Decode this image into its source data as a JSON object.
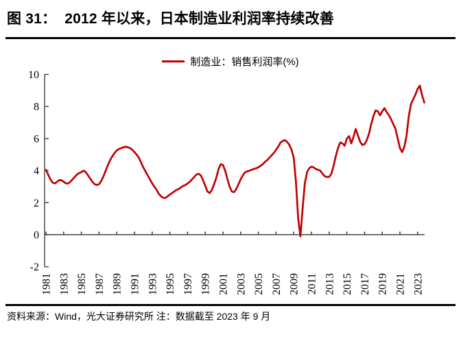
{
  "header": {
    "title": "图 31：  2012 年以来，日本制造业利润率持续改善"
  },
  "legend": {
    "label": "制造业：销售利润率(%)"
  },
  "footer": {
    "text": "资料来源：Wind，光大证券研究所 注：数据截至 2023 年 9 月"
  },
  "colors": {
    "line": "#C00000",
    "axis": "#404040",
    "text": "#000000",
    "background": "#FFFFFF"
  },
  "chart_data": {
    "type": "line",
    "title": "图 31：2012 年以来，日本制造业利润率持续改善",
    "xlabel": "",
    "ylabel": "",
    "grid": false,
    "legend_position": "top-center",
    "ylim": [
      -2,
      10
    ],
    "xlim": [
      1981,
      2024
    ],
    "y_ticks": [
      10,
      8,
      6,
      4,
      2,
      0,
      -2
    ],
    "x_ticks": [
      "1981",
      "1983",
      "1985",
      "1987",
      "1989",
      "1991",
      "1993",
      "1995",
      "1997",
      "1999",
      "2001",
      "2003",
      "2005",
      "2007",
      "2009",
      "2011",
      "2013",
      "2015",
      "2017",
      "2019",
      "2021",
      "2023"
    ],
    "x_start": 1981.0,
    "x_step": 0.25,
    "series": [
      {
        "name": "制造业：销售利润率(%)",
        "color": "#C00000",
        "values": [
          4.05,
          3.75,
          3.45,
          3.25,
          3.2,
          3.3,
          3.4,
          3.4,
          3.3,
          3.2,
          3.2,
          3.3,
          3.45,
          3.6,
          3.75,
          3.85,
          3.9,
          4.0,
          3.9,
          3.7,
          3.5,
          3.3,
          3.15,
          3.1,
          3.15,
          3.35,
          3.65,
          4.0,
          4.35,
          4.65,
          4.9,
          5.1,
          5.25,
          5.35,
          5.4,
          5.45,
          5.5,
          5.45,
          5.4,
          5.3,
          5.15,
          5.0,
          4.8,
          4.5,
          4.2,
          3.95,
          3.7,
          3.45,
          3.2,
          3.0,
          2.8,
          2.55,
          2.4,
          2.3,
          2.3,
          2.4,
          2.5,
          2.6,
          2.7,
          2.8,
          2.85,
          2.95,
          3.05,
          3.1,
          3.2,
          3.3,
          3.45,
          3.6,
          3.75,
          3.8,
          3.7,
          3.4,
          3.05,
          2.7,
          2.6,
          2.8,
          3.15,
          3.55,
          4.1,
          4.4,
          4.35,
          4.0,
          3.5,
          3.0,
          2.7,
          2.65,
          2.85,
          3.15,
          3.45,
          3.7,
          3.9,
          3.95,
          4.0,
          4.05,
          4.1,
          4.15,
          4.2,
          4.3,
          4.4,
          4.55,
          4.65,
          4.8,
          4.95,
          5.1,
          5.3,
          5.5,
          5.75,
          5.85,
          5.9,
          5.8,
          5.6,
          5.3,
          4.8,
          3.3,
          1.0,
          -0.1,
          1.6,
          3.2,
          3.9,
          4.15,
          4.25,
          4.2,
          4.1,
          4.05,
          4.0,
          3.8,
          3.65,
          3.6,
          3.6,
          3.8,
          4.3,
          4.9,
          5.4,
          5.75,
          5.7,
          5.55,
          6.0,
          6.15,
          5.7,
          6.1,
          6.6,
          6.2,
          5.8,
          5.6,
          5.65,
          5.9,
          6.3,
          6.9,
          7.4,
          7.75,
          7.7,
          7.45,
          7.7,
          7.9,
          7.65,
          7.45,
          7.2,
          6.9,
          6.6,
          6.0,
          5.4,
          5.15,
          5.5,
          6.2,
          7.4,
          8.15,
          8.45,
          8.75,
          9.1,
          9.3,
          8.7,
          8.25
        ]
      }
    ]
  }
}
